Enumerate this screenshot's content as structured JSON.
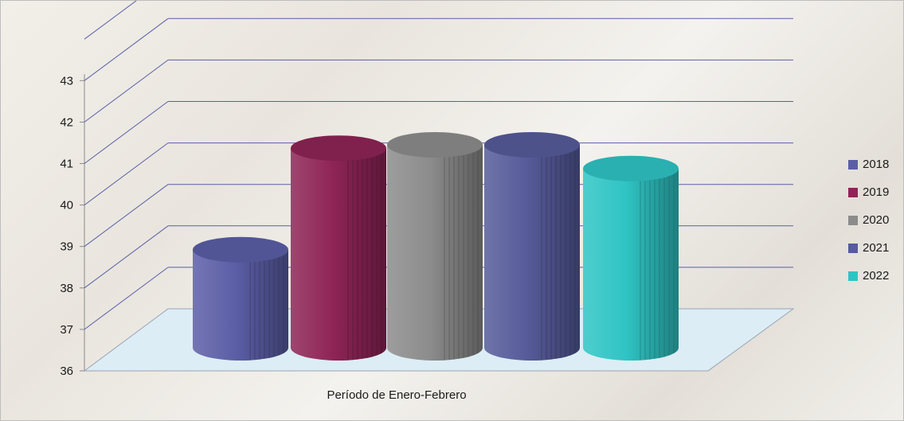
{
  "chart_data": {
    "type": "bar",
    "variant": "3d-cylinder",
    "categories": [
      "Período de Enero-Febrero"
    ],
    "xlabel": "Período de Enero-Febrero",
    "ylabel": "",
    "ylim": [
      36,
      43
    ],
    "y_ticks": [
      36,
      37,
      38,
      39,
      40,
      41,
      42,
      43
    ],
    "grid": true,
    "legend_position": "right",
    "series": [
      {
        "name": "2018",
        "value": 38.9,
        "color": "#5b5ea6"
      },
      {
        "name": "2019",
        "value": 41.9,
        "color": "#8e2456"
      },
      {
        "name": "2020",
        "value": 42.0,
        "color": "#8c8c8c"
      },
      {
        "name": "2021",
        "value": 42.0,
        "color": "#565b9a"
      },
      {
        "name": "2022",
        "value": 41.3,
        "color": "#2fc4c4"
      }
    ]
  }
}
